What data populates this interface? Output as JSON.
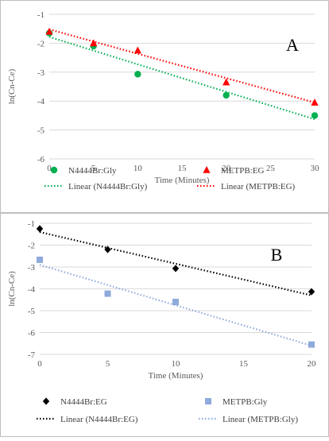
{
  "chart_data": [
    {
      "type": "scatter",
      "panel_label": "A",
      "xlabel": "Time (Minutes)",
      "ylabel": "ln(Cn-Ce)",
      "xlim": [
        0,
        30
      ],
      "ylim": [
        -6,
        -1
      ],
      "xticks": [
        "0",
        "5",
        "10",
        "15",
        "20",
        "25",
        "30"
      ],
      "yticks": [
        "-1",
        "-2",
        "-3",
        "-4",
        "-5",
        "-6"
      ],
      "grid": "horizontal",
      "legend_position": "bottom",
      "series": [
        {
          "name": "N4444Br:Gly",
          "marker": "circle",
          "color": "#00b050",
          "x": [
            0,
            5,
            10,
            20,
            30
          ],
          "y": [
            -1.65,
            -2.1,
            -3.07,
            -3.8,
            -4.5
          ]
        },
        {
          "name": "METPB:EG",
          "marker": "triangle",
          "color": "#ff0000",
          "x": [
            0,
            5,
            10,
            20,
            30
          ],
          "y": [
            -1.6,
            -2.0,
            -2.25,
            -3.35,
            -4.05
          ]
        }
      ],
      "trendlines": [
        {
          "name": "Linear (N4444Br:Gly)",
          "color": "#00b050",
          "x": [
            0,
            30
          ],
          "y": [
            -1.78,
            -4.63
          ]
        },
        {
          "name": "Linear (METPB:EG)",
          "color": "#ff0000",
          "x": [
            0,
            30
          ],
          "y": [
            -1.52,
            -4.05
          ]
        }
      ]
    },
    {
      "type": "scatter",
      "panel_label": "B",
      "xlabel": "Time (Minutes)",
      "ylabel": "ln(Cn-Ce)",
      "xlim": [
        0,
        20
      ],
      "ylim": [
        -7,
        -1
      ],
      "xticks": [
        "0",
        "5",
        "10",
        "15",
        "20"
      ],
      "yticks": [
        "-1",
        "-2",
        "-3",
        "-4",
        "-5",
        "-6",
        "-7"
      ],
      "grid": "horizontal",
      "legend_position": "bottom",
      "series": [
        {
          "name": "N4444Br:EG",
          "marker": "diamond",
          "color": "#000000",
          "x": [
            0,
            5,
            10,
            20
          ],
          "y": [
            -1.25,
            -2.2,
            -3.07,
            -4.13
          ]
        },
        {
          "name": "METPB:Gly",
          "marker": "square",
          "color": "#8eaadb",
          "x": [
            0,
            5,
            10,
            20
          ],
          "y": [
            -2.67,
            -4.22,
            -4.6,
            -6.55
          ]
        }
      ],
      "trendlines": [
        {
          "name": "Linear (N4444Br:EG)",
          "color": "#000000",
          "x": [
            0,
            20
          ],
          "y": [
            -1.4,
            -4.3
          ]
        },
        {
          "name": "Linear (METPB:Gly)",
          "color": "#8eaadb",
          "x": [
            0,
            20
          ],
          "y": [
            -2.9,
            -6.6
          ]
        }
      ]
    }
  ]
}
